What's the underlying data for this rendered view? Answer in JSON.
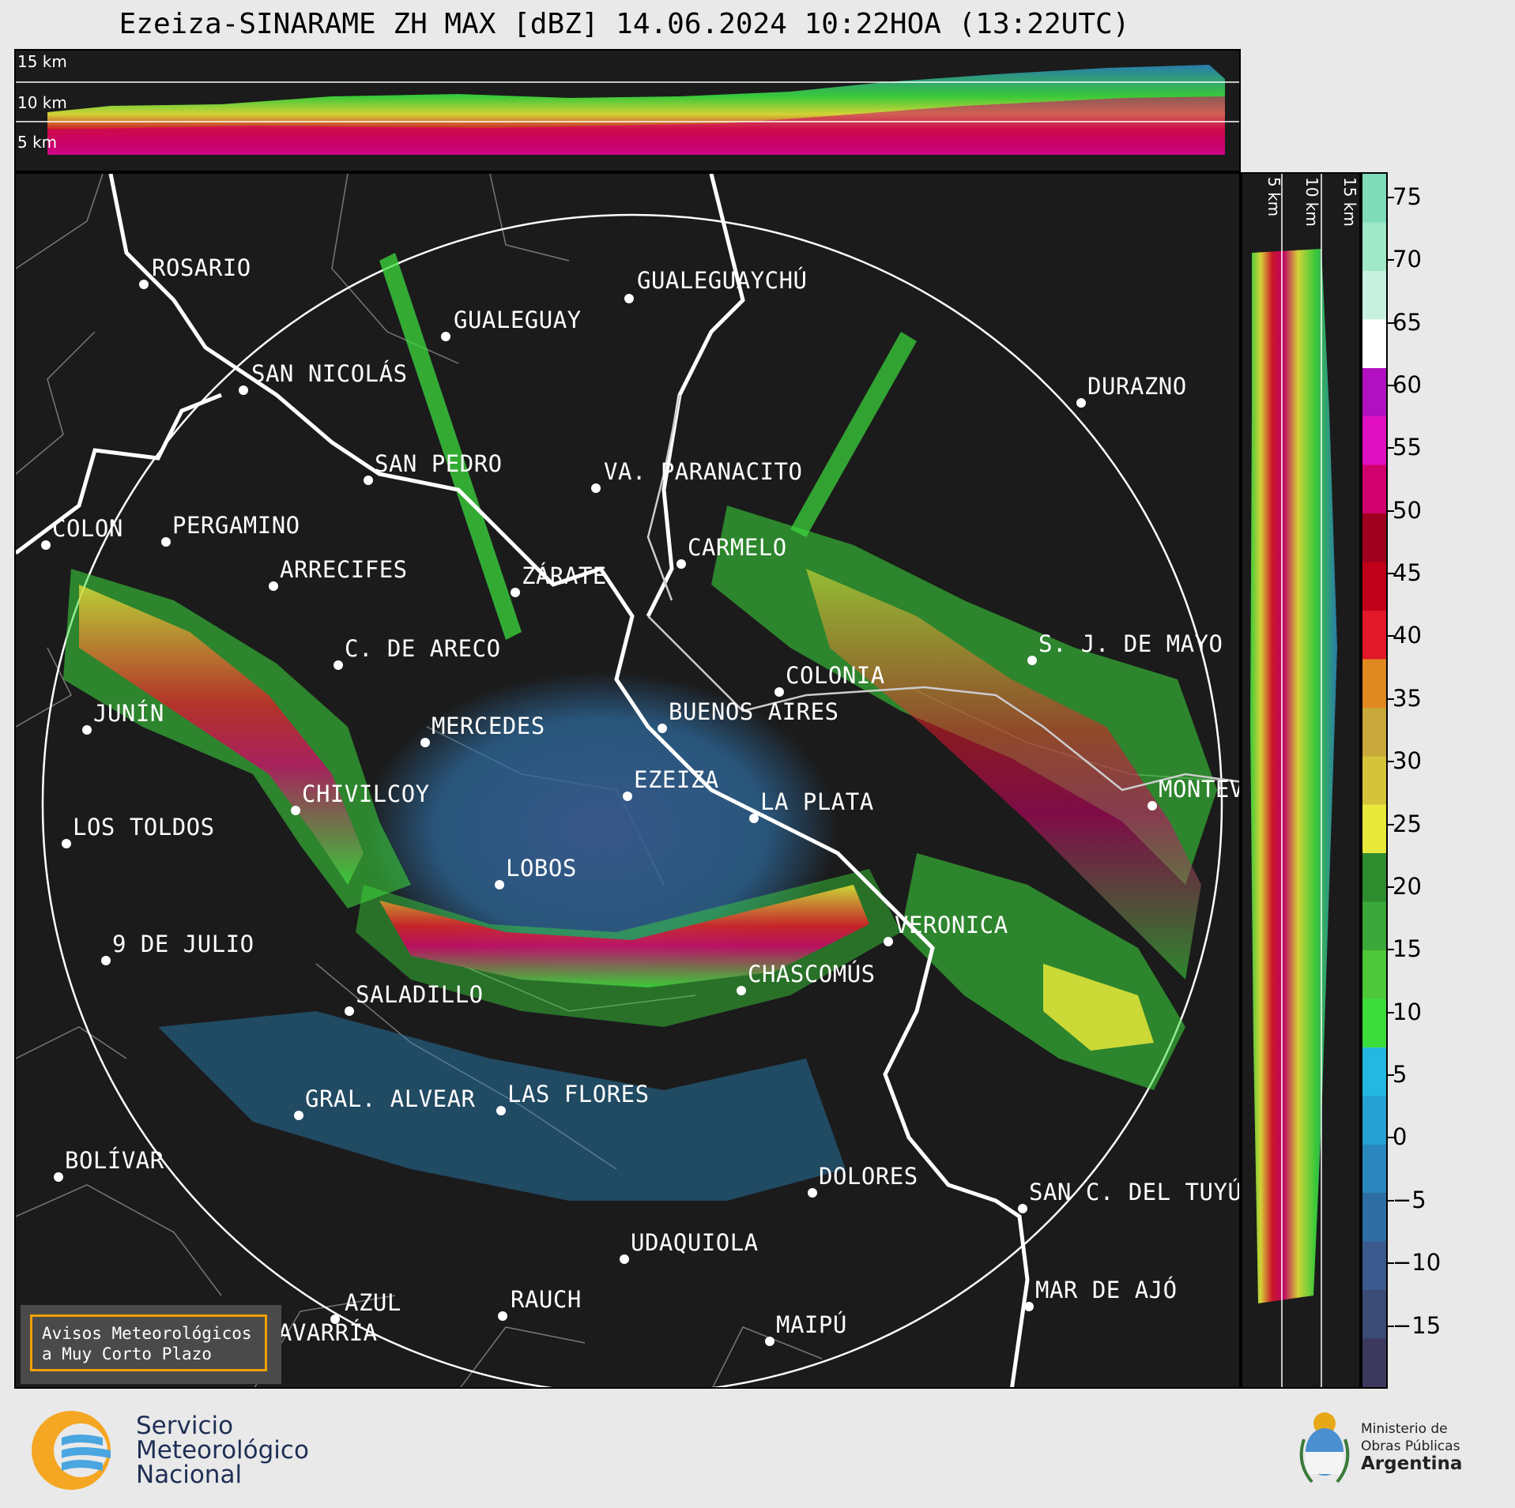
{
  "title": "Ezeiza-SINARAME ZH MAX [dBZ] 14.06.2024 10:22HOA (13:22UTC)",
  "top_panel": {
    "height_labels": [
      "15 km",
      "10 km",
      "5 km"
    ]
  },
  "side_panel": {
    "height_labels": [
      "5 km",
      "10 km",
      "15 km"
    ]
  },
  "cities": [
    {
      "name": "ROSARIO"
    },
    {
      "name": "GUALEGUAYCHÚ"
    },
    {
      "name": "GUALEGUAY"
    },
    {
      "name": "SAN NICOLÁS"
    },
    {
      "name": "DURAZNO"
    },
    {
      "name": "SAN PEDRO"
    },
    {
      "name": "VA. PARANACITO"
    },
    {
      "name": "COLON"
    },
    {
      "name": "PERGAMINO"
    },
    {
      "name": "CARMELO"
    },
    {
      "name": "ARRECIFES"
    },
    {
      "name": "ZÁRATE"
    },
    {
      "name": "S. J. DE MAYO"
    },
    {
      "name": "C. DE ARECO"
    },
    {
      "name": "COLONIA"
    },
    {
      "name": "JUNÍN"
    },
    {
      "name": "BUENOS AIRES"
    },
    {
      "name": "MERCEDES"
    },
    {
      "name": "MONTEV"
    },
    {
      "name": "EZEIZA"
    },
    {
      "name": "CHIVILCOY"
    },
    {
      "name": "LA PLATA"
    },
    {
      "name": "LOS TOLDOS"
    },
    {
      "name": "LOBOS"
    },
    {
      "name": "VERONICA"
    },
    {
      "name": "9 DE JULIO"
    },
    {
      "name": "CHASCOMÚS"
    },
    {
      "name": "SALADILLO"
    },
    {
      "name": "GRAL. ALVEAR"
    },
    {
      "name": "LAS FLORES"
    },
    {
      "name": "BOLÍVAR"
    },
    {
      "name": "DOLORES"
    },
    {
      "name": "SAN C. DEL TUYÚ"
    },
    {
      "name": "UDAQUIOLA"
    },
    {
      "name": "MAR DE AJÓ"
    },
    {
      "name": "AZUL"
    },
    {
      "name": "RAUCH"
    },
    {
      "name": "OLAVARRÍA"
    },
    {
      "name": "MAIPÚ"
    }
  ],
  "colorbar": {
    "ticks": [
      "75",
      "70",
      "65",
      "60",
      "55",
      "50",
      "45",
      "40",
      "35",
      "30",
      "25",
      "20",
      "15",
      "10",
      "5",
      "0",
      "−5",
      "−10",
      "−15"
    ],
    "range_dbz": [
      -20,
      77
    ],
    "colors": [
      "#3b3a5e",
      "#3c4a76",
      "#3a5a8e",
      "#2f6ea4",
      "#2a86bc",
      "#25a0d0",
      "#22b8e0",
      "#3cdc3c",
      "#4ec83a",
      "#3aa83a",
      "#2e8c2e",
      "#e8e83a",
      "#d4c43a",
      "#c8a83a",
      "#e08820",
      "#e01828",
      "#c00018",
      "#a00020",
      "#d0006c",
      "#e010c0",
      "#b010c0",
      "#ffffff",
      "#c8f0e0",
      "#a0e8c8",
      "#80dcb8"
    ]
  },
  "avisos": {
    "line1": "Avisos Meteorológicos",
    "line2": "a Muy Corto Plazo"
  },
  "logos": {
    "smn": {
      "line1": "Servicio",
      "line2": "Meteorológico",
      "line3": "Nacional"
    },
    "mop": {
      "line1": "Ministerio de",
      "line2": "Obras Públicas",
      "line3": "Argentina"
    }
  }
}
